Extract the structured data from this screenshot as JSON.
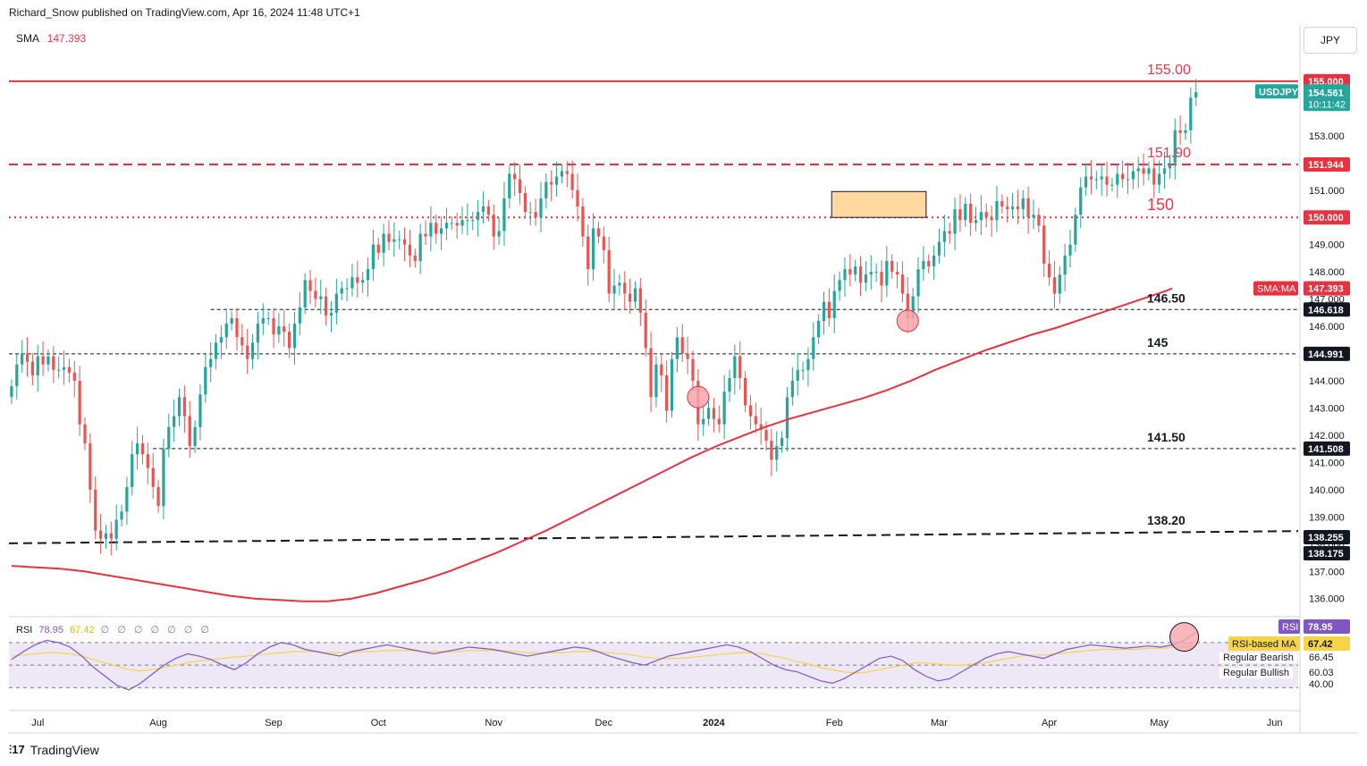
{
  "header": {
    "attribution": "Richard_Snow published on TradingView.com, Apr 16, 2024 11:48 UTC+1",
    "sma_label": "SMA",
    "sma_value": "147.393",
    "currency": "JPY",
    "footer_brand": "TradingView"
  },
  "rsi_legend": {
    "label": "RSI",
    "rsi": "78.95",
    "ma": "67.42",
    "zeros": "∅ ∅ ∅ ∅ ∅ ∅ ∅"
  },
  "rsi_tags": {
    "rsi_label": "RSI",
    "rsi_value": "78.95",
    "ma_label": "RSI-based MA",
    "ma_value": "67.42",
    "bearish_label": "Regular Bearish",
    "bearish_value": "66.45",
    "bullish_label": "Regular Bullish",
    "bullish_value": "60.03",
    "level_40": "40.00"
  },
  "colors": {
    "bull": "#26a69a",
    "bear": "#ef5350",
    "sma": "#e8323f",
    "level_red": "#e8323f",
    "rsi": "#7e57c2",
    "rsi_ma": "#f5d547",
    "rsi_band": "#ede7f6",
    "box": "#ffd8a0"
  },
  "chart_data": {
    "type": "candlestick",
    "symbol": "USDJPY",
    "last_price": "154.561",
    "countdown": "10:11:42",
    "ylim": [
      135.4,
      157.0
    ],
    "y_ticks": [
      "136.000",
      "137.000",
      "138.000",
      "139.000",
      "140.000",
      "141.000",
      "142.000",
      "143.000",
      "144.000",
      "146.000",
      "147.000",
      "148.000",
      "149.000",
      "151.000",
      "153.000"
    ],
    "x_labels": [
      {
        "label": "Jul",
        "i": 5
      },
      {
        "label": "Aug",
        "i": 28
      },
      {
        "label": "Sep",
        "i": 50
      },
      {
        "label": "Oct",
        "i": 70
      },
      {
        "label": "Nov",
        "i": 92
      },
      {
        "label": "Dec",
        "i": 113
      },
      {
        "label": "2024",
        "i": 134
      },
      {
        "label": "Feb",
        "i": 157
      },
      {
        "label": "Mar",
        "i": 177
      },
      {
        "label": "Apr",
        "i": 198
      },
      {
        "label": "May",
        "i": 219
      },
      {
        "label": "Jun",
        "i": 241
      }
    ],
    "total_slots": 246,
    "closes": [
      143.8,
      144.6,
      145.0,
      144.7,
      144.2,
      144.9,
      144.6,
      144.9,
      144.4,
      144.4,
      144.5,
      144.3,
      144.0,
      142.4,
      141.7,
      140.0,
      138.5,
      138.2,
      138.4,
      138.2,
      138.9,
      139.2,
      140.1,
      141.3,
      141.7,
      141.3,
      140.8,
      140.1,
      139.4,
      141.5,
      142.3,
      142.7,
      143.4,
      142.7,
      141.6,
      142.3,
      143.5,
      144.5,
      144.8,
      145.4,
      145.6,
      146.1,
      146.3,
      145.6,
      145.3,
      144.8,
      145.4,
      146.1,
      146.3,
      146.3,
      145.7,
      146.0,
      145.8,
      145.2,
      146.1,
      146.7,
      147.7,
      147.3,
      147.0,
      147.1,
      146.4,
      146.5,
      147.2,
      147.4,
      147.4,
      147.8,
      147.6,
      147.7,
      148.1,
      149.0,
      148.7,
      149.4,
      149.1,
      149.2,
      149.2,
      149.0,
      148.6,
      148.4,
      149.4,
      149.3,
      149.8,
      149.4,
      149.6,
      149.8,
      149.8,
      149.7,
      149.9,
      149.9,
      149.9,
      150.2,
      150.4,
      150.1,
      149.3,
      149.5,
      150.7,
      151.6,
      151.4,
      150.9,
      150.2,
      150.2,
      150.0,
      150.7,
      151.3,
      151.2,
      151.5,
      151.7,
      151.6,
      151.0,
      150.4,
      149.3,
      148.1,
      149.6,
      149.3,
      148.8,
      147.2,
      147.5,
      147.6,
      147.2,
      146.9,
      147.4,
      146.5,
      145.2,
      143.4,
      144.6,
      144.2,
      142.9,
      144.8,
      145.6,
      145.0,
      144.8,
      144.0,
      142.4,
      142.6,
      143.0,
      142.6,
      142.4,
      143.6,
      144.1,
      144.9,
      144.1,
      143.1,
      142.7,
      142.4,
      142.2,
      141.8,
      141.1,
      141.6,
      141.9,
      143.4,
      144.0,
      144.4,
      144.4,
      144.8,
      145.6,
      146.2,
      146.9,
      146.3,
      147.3,
      147.7,
      148.1,
      147.9,
      148.2,
      147.6,
      147.9,
      148.0,
      148.0,
      147.5,
      148.4,
      148.0,
      147.9,
      147.2,
      146.3,
      147.1,
      148.1,
      148.4,
      148.2,
      148.6,
      149.1,
      149.5,
      149.4,
      150.3,
      149.9,
      150.5,
      149.8,
      149.9,
      150.2,
      150.0,
      149.9,
      150.6,
      150.4,
      150.3,
      150.4,
      150.3,
      150.7,
      150.0,
      150.1,
      149.7,
      148.3,
      147.8,
      147.2,
      147.9,
      148.6,
      149.0,
      150.1,
      151.1,
      151.5,
      151.4,
      151.4,
      151.5,
      151.2,
      151.2,
      151.6,
      151.4,
      151.4,
      151.7,
      151.8,
      151.6,
      151.8,
      151.2,
      151.6,
      151.8,
      152.0,
      153.2,
      153.1,
      153.2,
      154.4,
      154.6
    ],
    "sma": [
      137.2,
      137.15,
      137.1,
      137.0,
      136.85,
      136.7,
      136.55,
      136.4,
      136.25,
      136.1,
      136.0,
      135.95,
      135.9,
      135.9,
      136.0,
      136.2,
      136.45,
      136.7,
      137.0,
      137.35,
      137.7,
      138.1,
      138.5,
      138.95,
      139.4,
      139.85,
      140.3,
      140.75,
      141.2,
      141.6,
      141.95,
      142.3,
      142.6,
      142.85,
      143.1,
      143.35,
      143.65,
      144.0,
      144.4,
      144.75,
      145.1,
      145.4,
      145.7,
      145.95,
      146.25,
      146.55,
      146.85,
      147.15,
      147.3,
      147.393
    ],
    "sma_x": [
      0,
      8,
      16,
      24,
      32,
      40,
      48,
      56,
      64,
      72,
      80,
      88,
      96,
      104,
      112,
      120,
      128,
      136,
      144,
      152,
      160,
      168,
      176,
      184,
      192,
      200,
      208,
      216,
      224,
      232,
      240,
      248,
      256,
      264,
      272,
      280,
      288,
      296,
      304,
      312,
      320,
      328,
      336,
      344,
      352,
      360,
      368,
      376,
      380,
      382
    ],
    "levels": [
      {
        "label": "155.00",
        "value": 155.0,
        "style": "solid",
        "color": "#e8323f",
        "tag": "155.000"
      },
      {
        "label": "151.90",
        "value": 151.944,
        "style": "dashed",
        "color": "#e8323f",
        "tag": "151.944"
      },
      {
        "label": "150",
        "value": 150.0,
        "style": "dotted",
        "color": "#e8323f",
        "tag": "150.000"
      },
      {
        "label": "146.50",
        "value": 146.618,
        "style": "dashed-thin",
        "color": "#131722",
        "tag": "146.618"
      },
      {
        "label": "145",
        "value": 144.991,
        "style": "dashed-thin",
        "color": "#131722",
        "tag": "144.991"
      },
      {
        "label": "141.50",
        "value": 141.508,
        "style": "dashed-thin",
        "color": "#131722",
        "tag": "141.508"
      },
      {
        "label": "138.20",
        "value": 138.255,
        "style": "trend",
        "color": "#131722",
        "tag": "138.255"
      }
    ],
    "extra_tag": "138.175",
    "sma_tag": "SMA:MA",
    "sma_tag_value": "147.393",
    "rsi": [
      55,
      62,
      68,
      72,
      70,
      66,
      58,
      48,
      40,
      32,
      28,
      34,
      42,
      50,
      56,
      60,
      58,
      55,
      50,
      46,
      52,
      60,
      66,
      70,
      68,
      64,
      62,
      60,
      58,
      62,
      64,
      66,
      68,
      66,
      64,
      62,
      60,
      62,
      64,
      66,
      65,
      64,
      62,
      60,
      58,
      60,
      62,
      64,
      66,
      65,
      62,
      58,
      55,
      52,
      50,
      54,
      58,
      60,
      62,
      64,
      66,
      68,
      66,
      62,
      56,
      50,
      46,
      44,
      40,
      36,
      34,
      38,
      44,
      50,
      56,
      58,
      54,
      46,
      40,
      36,
      38,
      44,
      50,
      56,
      60,
      62,
      60,
      58,
      56,
      60,
      64,
      66,
      68,
      67,
      66,
      65,
      66,
      67,
      66,
      68,
      72,
      78.95
    ],
    "rsi_ma": [
      58,
      59,
      60,
      61,
      61,
      60,
      58,
      55,
      52,
      49,
      46,
      45,
      46,
      48,
      50,
      52,
      54,
      55,
      56,
      57,
      58,
      59,
      60,
      61,
      62,
      62,
      62,
      61,
      61,
      61,
      62,
      62,
      63,
      63,
      63,
      62,
      62,
      62,
      62,
      63,
      63,
      63,
      63,
      62,
      61,
      61,
      61,
      61,
      62,
      62,
      62,
      61,
      60,
      59,
      57,
      56,
      56,
      56,
      57,
      58,
      59,
      60,
      61,
      61,
      60,
      58,
      56,
      53,
      51,
      48,
      46,
      44,
      43,
      44,
      46,
      48,
      50,
      52,
      52,
      51,
      50,
      50,
      51,
      52,
      54,
      56,
      58,
      59,
      59,
      60,
      61,
      62,
      63,
      64,
      64,
      64,
      64,
      65,
      65,
      66,
      66,
      67.42
    ]
  }
}
